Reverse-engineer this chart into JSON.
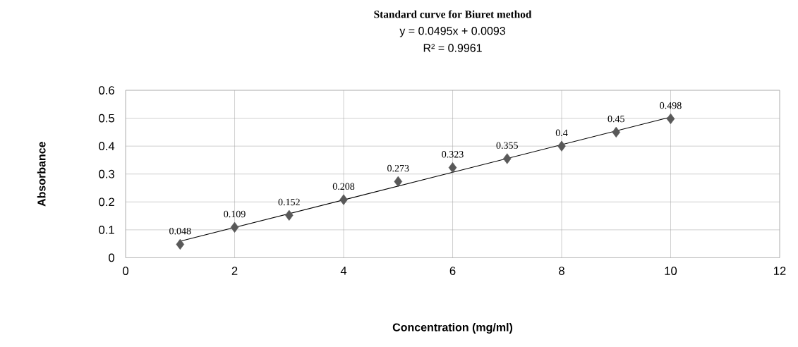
{
  "chart_data": {
    "type": "scatter",
    "title": "Standard curve for Biuret method",
    "xlabel": "Concentration (mg/ml)",
    "ylabel": "Absorbance",
    "annotations": [
      "y = 0.0495x + 0.0093",
      "R² = 0.9961"
    ],
    "series": [
      {
        "color": "#595959",
        "marker": "diamond",
        "x": [
          1,
          2,
          3,
          4,
          5,
          6,
          7,
          8,
          9,
          10
        ],
        "values": [
          0.048,
          0.109,
          0.152,
          0.208,
          0.273,
          0.323,
          0.355,
          0.4,
          0.45,
          0.498
        ],
        "value_labels": [
          "0.048",
          "0.109",
          "0.152",
          "0.208",
          "0.273",
          "0.323",
          "0.355",
          "0.4",
          "0.45",
          "0.498"
        ]
      },
      {
        "type": "line",
        "color": "#000000",
        "marker": "none",
        "x": [
          1,
          10
        ],
        "values": [
          0.059,
          0.504
        ]
      }
    ],
    "xlim": [
      0,
      12
    ],
    "ylim": [
      0,
      0.6
    ],
    "xticks": [
      0,
      2,
      4,
      6,
      8,
      10,
      12
    ],
    "yticks": [
      0,
      0.1,
      0.2,
      0.3,
      0.4,
      0.5,
      0.6
    ],
    "grid": true
  }
}
